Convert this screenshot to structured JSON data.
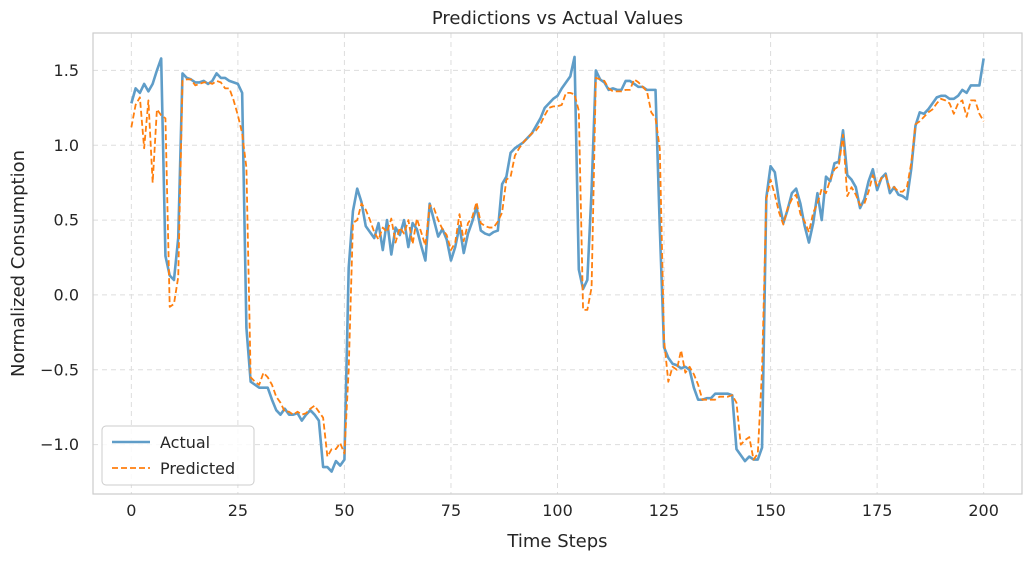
{
  "chart_data": {
    "type": "line",
    "title": "Predictions vs Actual Values",
    "xlabel": "Time Steps",
    "ylabel": "Normalized Consumption",
    "xlim": [
      -9,
      209
    ],
    "ylim": [
      -1.33,
      1.75
    ],
    "xticks": [
      0,
      25,
      50,
      75,
      100,
      125,
      150,
      175,
      200
    ],
    "yticks": [
      -1.0,
      -0.5,
      0.0,
      0.5,
      1.0,
      1.5
    ],
    "ytick_labels": [
      "−1.0",
      "−0.5",
      "0.0",
      "0.5",
      "1.0",
      "1.5"
    ],
    "grid": true,
    "legend_position": "lower-left",
    "series": [
      {
        "name": "Actual",
        "color": "#5f9dc8",
        "style": "solid",
        "values": [
          1.28,
          1.38,
          1.35,
          1.41,
          1.36,
          1.41,
          1.5,
          1.58,
          0.26,
          0.13,
          0.1,
          0.38,
          1.48,
          1.45,
          1.44,
          1.42,
          1.42,
          1.43,
          1.41,
          1.43,
          1.48,
          1.45,
          1.45,
          1.43,
          1.42,
          1.41,
          1.35,
          -0.22,
          -0.58,
          -0.6,
          -0.62,
          -0.62,
          -0.62,
          -0.7,
          -0.77,
          -0.8,
          -0.76,
          -0.8,
          -0.8,
          -0.79,
          -0.84,
          -0.8,
          -0.77,
          -0.8,
          -0.84,
          -1.15,
          -1.15,
          -1.18,
          -1.11,
          -1.14,
          -1.1,
          0.18,
          0.56,
          0.71,
          0.62,
          0.46,
          0.42,
          0.38,
          0.48,
          0.3,
          0.5,
          0.27,
          0.45,
          0.4,
          0.5,
          0.32,
          0.48,
          0.44,
          0.33,
          0.23,
          0.61,
          0.5,
          0.39,
          0.44,
          0.37,
          0.23,
          0.32,
          0.46,
          0.28,
          0.41,
          0.49,
          0.59,
          0.43,
          0.41,
          0.4,
          0.42,
          0.43,
          0.74,
          0.79,
          0.95,
          0.98,
          1.0,
          1.02,
          1.05,
          1.08,
          1.13,
          1.18,
          1.25,
          1.28,
          1.31,
          1.33,
          1.38,
          1.42,
          1.46,
          1.59,
          0.17,
          0.04,
          0.1,
          0.7,
          1.5,
          1.44,
          1.42,
          1.37,
          1.38,
          1.37,
          1.37,
          1.43,
          1.43,
          1.41,
          1.39,
          1.39,
          1.37,
          1.37,
          1.37,
          0.45,
          -0.35,
          -0.42,
          -0.46,
          -0.47,
          -0.49,
          -0.48,
          -0.5,
          -0.62,
          -0.7,
          -0.7,
          -0.69,
          -0.69,
          -0.66,
          -0.66,
          -0.66,
          -0.66,
          -0.67,
          -1.03,
          -1.07,
          -1.11,
          -1.08,
          -1.1,
          -1.1,
          -1.02,
          0.65,
          0.86,
          0.82,
          0.62,
          0.48,
          0.57,
          0.68,
          0.71,
          0.61,
          0.46,
          0.35,
          0.48,
          0.68,
          0.5,
          0.79,
          0.76,
          0.88,
          0.89,
          1.1,
          0.8,
          0.77,
          0.72,
          0.58,
          0.64,
          0.76,
          0.84,
          0.7,
          0.78,
          0.81,
          0.68,
          0.72,
          0.67,
          0.66,
          0.64,
          0.84,
          1.13,
          1.22,
          1.21,
          1.24,
          1.28,
          1.32,
          1.33,
          1.33,
          1.31,
          1.31,
          1.33,
          1.37,
          1.35,
          1.4,
          1.4,
          1.4,
          1.58
        ]
      },
      {
        "name": "Predicted",
        "color": "#ff7f0e",
        "style": "dashed",
        "values": [
          1.12,
          1.27,
          1.32,
          0.98,
          1.3,
          0.75,
          1.24,
          1.2,
          1.18,
          -0.08,
          -0.06,
          0.12,
          1.43,
          1.44,
          1.44,
          1.4,
          1.41,
          1.42,
          1.42,
          1.41,
          1.43,
          1.42,
          1.38,
          1.38,
          1.3,
          1.2,
          1.08,
          0.85,
          -0.55,
          -0.58,
          -0.6,
          -0.52,
          -0.55,
          -0.6,
          -0.68,
          -0.72,
          -0.78,
          -0.78,
          -0.8,
          -0.78,
          -0.8,
          -0.79,
          -0.76,
          -0.74,
          -0.78,
          -0.82,
          -1.08,
          -1.03,
          -1.03,
          -0.99,
          -1.06,
          -0.5,
          0.48,
          0.5,
          0.61,
          0.57,
          0.5,
          0.42,
          0.37,
          0.45,
          0.42,
          0.51,
          0.35,
          0.45,
          0.41,
          0.5,
          0.34,
          0.51,
          0.42,
          0.33,
          0.6,
          0.58,
          0.5,
          0.44,
          0.4,
          0.3,
          0.35,
          0.54,
          0.36,
          0.48,
          0.52,
          0.62,
          0.48,
          0.46,
          0.45,
          0.45,
          0.49,
          0.55,
          0.77,
          0.79,
          0.93,
          0.98,
          1.02,
          1.05,
          1.08,
          1.1,
          1.14,
          1.2,
          1.25,
          1.26,
          1.26,
          1.27,
          1.35,
          1.35,
          1.34,
          1.23,
          -0.1,
          -0.1,
          0.05,
          1.45,
          1.44,
          1.43,
          1.38,
          1.36,
          1.36,
          1.36,
          1.37,
          1.37,
          1.44,
          1.42,
          1.39,
          1.36,
          1.22,
          1.18,
          0.98,
          -0.3,
          -0.58,
          -0.48,
          -0.5,
          -0.37,
          -0.52,
          -0.48,
          -0.53,
          -0.6,
          -0.7,
          -0.7,
          -0.7,
          -0.7,
          -0.68,
          -0.68,
          -0.68,
          -0.67,
          -0.72,
          -1.0,
          -0.97,
          -0.95,
          -1.1,
          -1.06,
          -0.5,
          0.64,
          0.77,
          0.67,
          0.55,
          0.47,
          0.58,
          0.64,
          0.67,
          0.54,
          0.49,
          0.42,
          0.55,
          0.61,
          0.71,
          0.68,
          0.77,
          0.84,
          0.86,
          1.07,
          0.66,
          0.72,
          0.67,
          0.6,
          0.61,
          0.69,
          0.8,
          0.73,
          0.78,
          0.8,
          0.71,
          0.72,
          0.69,
          0.69,
          0.72,
          0.88,
          1.14,
          1.16,
          1.19,
          1.22,
          1.24,
          1.28,
          1.31,
          1.3,
          1.28,
          1.21,
          1.28,
          1.3,
          1.19,
          1.3,
          1.3,
          1.21,
          1.16
        ]
      }
    ]
  }
}
